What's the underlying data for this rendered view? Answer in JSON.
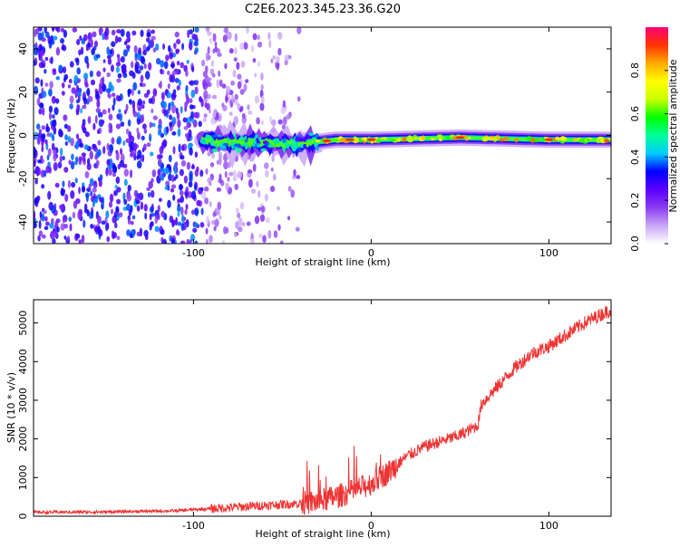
{
  "figure_title": "C2E6.2023.345.23.36.G20",
  "colors": {
    "snr_line": "#ee3333",
    "frame": "#000000",
    "background": "#ffffff"
  },
  "chart_data": [
    {
      "type": "heatmap",
      "title": "C2E6.2023.345.23.36.G20",
      "xlabel": "Height of straight line (km)",
      "ylabel": "Frequency (Hz)",
      "xlim": [
        -190,
        135
      ],
      "ylim": [
        -50,
        50
      ],
      "xticks": [
        -100,
        0,
        100
      ],
      "yticks": [
        -40,
        -20,
        0,
        20,
        40
      ],
      "colorbar": {
        "label": "Normalized spectral amplitude",
        "range": [
          0,
          1
        ],
        "ticks": [
          0.0,
          0.2,
          0.4,
          0.6,
          0.8
        ],
        "tick_labels": [
          "0.0",
          "0.2",
          "0.4",
          "0.6",
          "0.8"
        ],
        "stops": [
          "#ffffff",
          "#c9a6f5",
          "#8a3cf0",
          "#5b00ff",
          "#0000ff",
          "#00ccff",
          "#00ff99",
          "#00ff00",
          "#ccff00",
          "#ffff00",
          "#ffaa00",
          "#ff3300",
          "#ff0077"
        ]
      },
      "description_points": [
        {
          "x": -190,
          "signal_freq": null,
          "note": "noise region"
        },
        {
          "x": -90,
          "signal_freq": -3
        },
        {
          "x": -40,
          "signal_freq": -4
        },
        {
          "x": -20,
          "signal_freq": -2
        },
        {
          "x": 0,
          "signal_freq": -2
        },
        {
          "x": 50,
          "signal_freq": -1
        },
        {
          "x": 100,
          "signal_freq": -2
        },
        {
          "x": 135,
          "signal_freq": -2
        }
      ]
    },
    {
      "type": "line",
      "xlabel": "Height of straight line (km)",
      "ylabel": "SNR (10 * v/v)",
      "xlim": [
        -190,
        135
      ],
      "ylim": [
        0,
        5600
      ],
      "xticks": [
        -100,
        0,
        100
      ],
      "yticks": [
        0,
        1000,
        2000,
        3000,
        4000,
        5000
      ],
      "series": [
        {
          "name": "SNR",
          "x": [
            -190,
            -150,
            -110,
            -100,
            -80,
            -60,
            -40,
            -30,
            -20,
            -10,
            0,
            10,
            20,
            30,
            40,
            50,
            60,
            62,
            70,
            80,
            90,
            100,
            110,
            120,
            135
          ],
          "values": [
            100,
            110,
            140,
            170,
            220,
            280,
            330,
            380,
            500,
            650,
            850,
            1150,
            1550,
            1800,
            1950,
            2100,
            2350,
            2900,
            3300,
            3800,
            4200,
            4400,
            4700,
            5000,
            5350
          ]
        }
      ]
    }
  ]
}
